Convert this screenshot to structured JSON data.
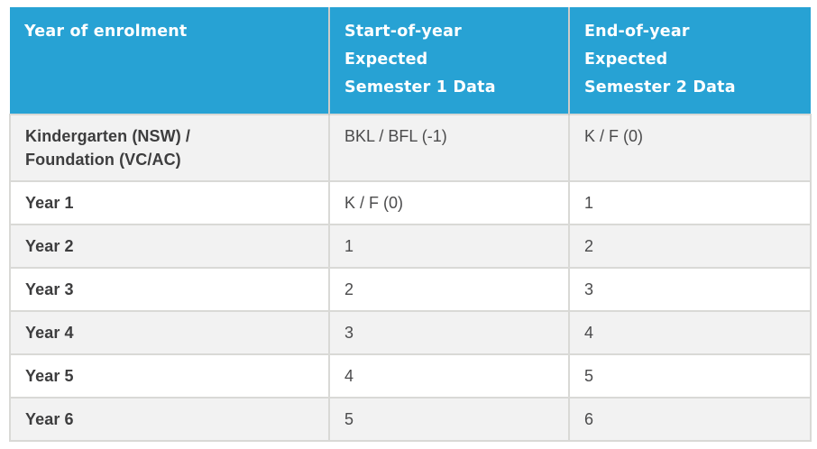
{
  "table": {
    "columns": [
      {
        "lines": [
          "Year of enrolment"
        ]
      },
      {
        "lines": [
          "Start-of-year",
          "Expected",
          "Semester 1 Data"
        ]
      },
      {
        "lines": [
          "End-of-year",
          "Expected",
          "Semester 2 Data"
        ]
      }
    ],
    "rows": [
      {
        "label_lines": [
          "Kindergarten (NSW) /",
          "Foundation (VC/AC)"
        ],
        "start": "BKL / BFL (-1)",
        "end": "K / F (0)"
      },
      {
        "label_lines": [
          "Year 1"
        ],
        "start": "K / F (0)",
        "end": "1"
      },
      {
        "label_lines": [
          "Year 2"
        ],
        "start": "1",
        "end": "2"
      },
      {
        "label_lines": [
          "Year 3"
        ],
        "start": "2",
        "end": "3"
      },
      {
        "label_lines": [
          "Year 4"
        ],
        "start": "3",
        "end": "4"
      },
      {
        "label_lines": [
          "Year 5"
        ],
        "start": "4",
        "end": "5"
      },
      {
        "label_lines": [
          "Year 6"
        ],
        "start": "5",
        "end": "6"
      }
    ],
    "colors": {
      "header_bg": "#27a2d4",
      "header_text": "#ffffff",
      "row_alt_bg": "#f2f2f2",
      "row_bg": "#ffffff",
      "border": "#d9d9d6",
      "label_text": "#3d3d3e",
      "value_text": "#4b4b4c"
    }
  }
}
